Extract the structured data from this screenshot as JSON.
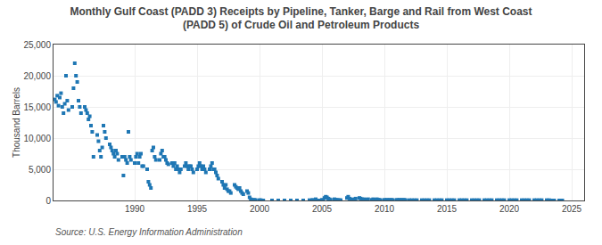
{
  "chart_data": {
    "type": "scatter",
    "title": "Monthly Gulf Coast (PADD 3) Receipts by Pipeline, Tanker, Barge and Rail from West Coast\n(PADD 5) of Crude Oil and Petroleum Products",
    "ylabel": "Thousand Barrels",
    "annotations": [
      "Source: U.S. Energy Information Administration"
    ],
    "marker": "square",
    "grid": true,
    "xlim": [
      1983.5,
      2026
    ],
    "ylim": [
      0,
      25000
    ],
    "xticks": [
      1990,
      1995,
      2000,
      2005,
      2010,
      2015,
      2020,
      2025
    ],
    "yticks": [
      0,
      {
        "value": 5000,
        "label": "5,000"
      },
      {
        "value": 10000,
        "label": "10,000"
      },
      {
        "value": 15000,
        "label": "15,000"
      },
      {
        "value": 20000,
        "label": "20,000"
      },
      {
        "value": 25000,
        "label": "25,000"
      }
    ],
    "x": [
      1983.6,
      1983.7,
      1983.8,
      1983.9,
      1984.0,
      1984.1,
      1984.2,
      1984.3,
      1984.4,
      1984.5,
      1984.6,
      1984.7,
      1985.0,
      1985.1,
      1985.2,
      1985.3,
      1985.4,
      1985.5,
      1985.6,
      1985.7,
      1986.0,
      1986.1,
      1986.2,
      1986.3,
      1986.4,
      1986.5,
      1986.6,
      1986.7,
      1987.0,
      1987.1,
      1987.2,
      1987.3,
      1987.4,
      1987.5,
      1987.6,
      1987.7,
      1988.0,
      1988.1,
      1988.2,
      1988.3,
      1988.4,
      1988.5,
      1988.6,
      1988.7,
      1989.0,
      1989.1,
      1989.2,
      1989.3,
      1989.4,
      1989.5,
      1989.6,
      1989.7,
      1990.0,
      1990.1,
      1990.2,
      1990.3,
      1990.4,
      1990.5,
      1990.6,
      1990.7,
      1991.0,
      1991.1,
      1991.2,
      1991.3,
      1991.4,
      1991.5,
      1991.6,
      1991.7,
      1992.0,
      1992.1,
      1992.2,
      1992.3,
      1992.4,
      1992.5,
      1992.6,
      1992.7,
      1993.0,
      1993.1,
      1993.2,
      1993.3,
      1993.4,
      1993.5,
      1993.6,
      1993.7,
      1994.0,
      1994.1,
      1994.2,
      1994.3,
      1994.4,
      1994.5,
      1994.6,
      1994.7,
      1995.0,
      1995.1,
      1995.2,
      1995.3,
      1995.4,
      1995.5,
      1995.6,
      1995.7,
      1996.0,
      1996.1,
      1996.2,
      1996.3,
      1996.4,
      1996.5,
      1996.6,
      1996.7,
      1997.0,
      1997.1,
      1997.2,
      1997.3,
      1997.4,
      1997.5,
      1997.6,
      1997.7,
      1998.0,
      1998.1,
      1998.2,
      1998.3,
      1998.4,
      1998.5,
      1998.6,
      1998.7,
      1999.0,
      1999.1,
      1999.2,
      1999.3,
      1999.4,
      1999.5,
      1999.6,
      1999.7,
      2000.0,
      2000.1,
      2000.2,
      2000.3,
      2001.0,
      2001.5,
      2002.0,
      2002.5,
      2003.0,
      2003.5,
      2004.0,
      2004.25,
      2004.5,
      2004.75,
      2005.0,
      2005.1,
      2005.2,
      2005.3,
      2005.4,
      2005.5,
      2005.6,
      2005.7,
      2006.0,
      2006.1,
      2006.2,
      2006.3,
      2006.4,
      2006.5,
      2007.0,
      2007.1,
      2007.2,
      2007.3,
      2007.4,
      2007.5,
      2007.6,
      2007.7,
      2008.0,
      2008.1,
      2008.2,
      2008.3,
      2008.4,
      2008.5,
      2008.6,
      2008.7,
      2009.0,
      2009.1,
      2009.2,
      2009.3,
      2009.4,
      2009.5,
      2009.6,
      2009.7,
      2010.0,
      2010.1,
      2010.2,
      2010.3,
      2010.4,
      2010.5,
      2010.6,
      2010.7,
      2011.0,
      2011.1,
      2011.2,
      2011.3,
      2011.4,
      2011.5,
      2011.6,
      2011.7,
      2012.0,
      2012.2,
      2012.4,
      2012.6,
      2013.0,
      2013.2,
      2013.4,
      2013.6,
      2014.0,
      2014.2,
      2014.4,
      2014.6,
      2015.0,
      2015.2,
      2015.4,
      2015.6,
      2016.0,
      2016.2,
      2016.4,
      2016.6,
      2017.0,
      2017.2,
      2017.4,
      2017.6,
      2018.0,
      2018.2,
      2018.4,
      2018.6,
      2019.0,
      2019.2,
      2019.4,
      2019.6,
      2020.0,
      2020.2,
      2020.4,
      2020.6,
      2021.0,
      2021.2,
      2021.4,
      2021.6,
      2022.0,
      2022.2,
      2022.4,
      2022.6,
      2023.0,
      2023.2,
      2023.4,
      2023.6,
      2024.0,
      2024.25
    ],
    "values": [
      16200,
      15800,
      16800,
      15200,
      16500,
      17200,
      15000,
      14000,
      15500,
      20000,
      16000,
      14500,
      15000,
      18000,
      22000,
      20000,
      19000,
      16000,
      15000,
      14000,
      15000,
      14500,
      14000,
      13000,
      13500,
      12000,
      11000,
      7000,
      10500,
      9500,
      8000,
      7000,
      8500,
      12000,
      11000,
      10000,
      9000,
      8500,
      8000,
      7500,
      7000,
      8000,
      7500,
      6500,
      7000,
      4000,
      7000,
      6500,
      6000,
      11000,
      7000,
      6500,
      6000,
      7000,
      7500,
      6000,
      7000,
      7500,
      5500,
      5500,
      5000,
      3000,
      2500,
      2000,
      8000,
      8500,
      7000,
      6500,
      6500,
      7500,
      8000,
      7000,
      7000,
      6500,
      6000,
      5800,
      6000,
      5500,
      6000,
      5000,
      5500,
      5000,
      4500,
      5000,
      5500,
      6000,
      5500,
      5000,
      5500,
      5500,
      5000,
      4500,
      5000,
      5500,
      6000,
      5500,
      5000,
      5500,
      5000,
      4500,
      5000,
      5500,
      6000,
      5000,
      5000,
      4500,
      4000,
      3500,
      3000,
      2500,
      2000,
      2500,
      1800,
      1500,
      1500,
      1200,
      2500,
      2200,
      2000,
      1800,
      2000,
      1500,
      1200,
      1000,
      1500,
      1200,
      500,
      200,
      100,
      50,
      100,
      50,
      50,
      50,
      0,
      0,
      0,
      0,
      0,
      0,
      0,
      0,
      50,
      100,
      200,
      0,
      100,
      50,
      400,
      600,
      500,
      300,
      200,
      100,
      200,
      100,
      100,
      50,
      50,
      50,
      400,
      600,
      300,
      200,
      100,
      50,
      200,
      300,
      400,
      300,
      200,
      100,
      200,
      100,
      100,
      200,
      100,
      200,
      100,
      100,
      200,
      100,
      100,
      50,
      100,
      50,
      100,
      50,
      100,
      50,
      100,
      50,
      100,
      50,
      100,
      50,
      100,
      50,
      100,
      50,
      50,
      50,
      50,
      50,
      50,
      50,
      50,
      50,
      50,
      50,
      50,
      50,
      50,
      50,
      50,
      50,
      50,
      50,
      50,
      50,
      50,
      50,
      50,
      50,
      50,
      50,
      50,
      50,
      50,
      50,
      50,
      50,
      50,
      50,
      50,
      50,
      50,
      50,
      50,
      50,
      50,
      50,
      50,
      50,
      50,
      50,
      0,
      0,
      0,
      0
    ]
  }
}
